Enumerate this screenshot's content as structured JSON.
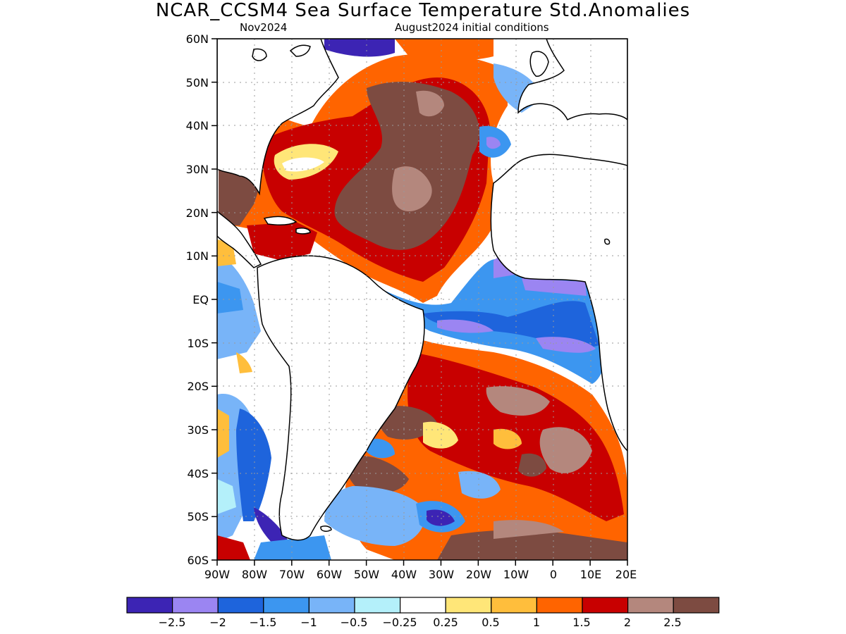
{
  "title": "NCAR_CCSM4 Sea Surface Temperature Std.Anomalies",
  "subtitle_left": "Nov2024",
  "subtitle_right": "August2024 initial conditions",
  "lat_labels": [
    "60N",
    "50N",
    "40N",
    "30N",
    "20N",
    "10N",
    "EQ",
    "10S",
    "20S",
    "30S",
    "40S",
    "50S",
    "60S"
  ],
  "lon_labels": [
    "90W",
    "80W",
    "70W",
    "60W",
    "50W",
    "40W",
    "30W",
    "20W",
    "10W",
    "0",
    "10E",
    "20E"
  ],
  "colorbar": {
    "colors": [
      "#3c24b4",
      "#9b85f2",
      "#1e64dc",
      "#3c96f0",
      "#78b4f8",
      "#b4f0fa",
      "#ffffff",
      "#ffe678",
      "#ffbe3c",
      "#ff6400",
      "#c80000",
      "#b4877d",
      "#7d4b41"
    ],
    "labels": [
      "−2.5",
      "−2",
      "−1.5",
      "−1",
      "−0.5",
      "−0.25",
      "0.25",
      "0.5",
      "1",
      "1.5",
      "2",
      "2.5"
    ]
  },
  "map_extent": {
    "lon_min": -90,
    "lon_max": 20,
    "lat_min": -60,
    "lat_max": 60
  }
}
